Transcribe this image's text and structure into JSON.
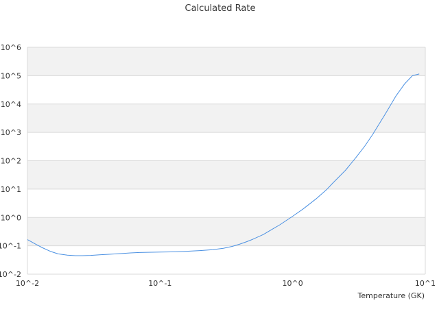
{
  "chart_data": {
    "type": "line",
    "title": "Calculated Rate",
    "xlabel": "Temperature (GK)",
    "ylabel": "",
    "x_scale": "log",
    "y_scale": "log",
    "xlim": [
      0.01,
      10
    ],
    "ylim": [
      0.01,
      1000000
    ],
    "x_ticks": [
      {
        "value": 0.01,
        "label": "10^-2"
      },
      {
        "value": 0.1,
        "label": "10^-1"
      },
      {
        "value": 1,
        "label": "10^0"
      },
      {
        "value": 10,
        "label": "10^1"
      }
    ],
    "y_ticks": [
      {
        "value": 0.01,
        "label": "10^-2"
      },
      {
        "value": 0.1,
        "label": "10^-1"
      },
      {
        "value": 1,
        "label": "10^0"
      },
      {
        "value": 10,
        "label": "10^1"
      },
      {
        "value": 100,
        "label": "10^2"
      },
      {
        "value": 1000,
        "label": "10^3"
      },
      {
        "value": 10000,
        "label": "10^4"
      },
      {
        "value": 100000,
        "label": "10^5"
      },
      {
        "value": 1000000,
        "label": "10^6"
      }
    ],
    "grid": true,
    "legend": "none",
    "series": [
      {
        "color": "#4a90e2",
        "x": [
          0.01,
          0.0115,
          0.013,
          0.015,
          0.017,
          0.02,
          0.023,
          0.026,
          0.03,
          0.035,
          0.04,
          0.05,
          0.06,
          0.07,
          0.08,
          0.1,
          0.12,
          0.15,
          0.2,
          0.25,
          0.3,
          0.35,
          0.4,
          0.45,
          0.5,
          0.6,
          0.7,
          0.8,
          1.0,
          1.2,
          1.5,
          1.8,
          2.0,
          2.5,
          3.0,
          3.5,
          4.0,
          5.0,
          6.0,
          7.0,
          8.0,
          9.0
        ],
        "y": [
          0.165,
          0.115,
          0.085,
          0.063,
          0.052,
          0.047,
          0.045,
          0.045,
          0.046,
          0.048,
          0.05,
          0.053,
          0.056,
          0.058,
          0.059,
          0.06,
          0.061,
          0.063,
          0.068,
          0.073,
          0.082,
          0.095,
          0.115,
          0.14,
          0.17,
          0.25,
          0.38,
          0.55,
          1.1,
          2.0,
          4.5,
          9.5,
          16,
          46,
          130,
          330,
          830,
          4500,
          19000,
          52000,
          100000,
          115000
        ]
      }
    ]
  }
}
